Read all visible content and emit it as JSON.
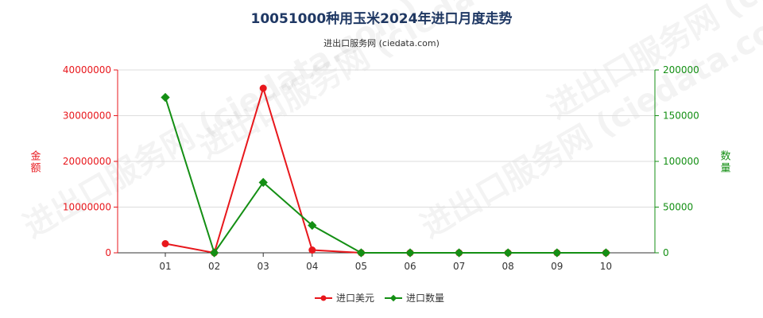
{
  "header": {
    "title": "10051000种用玉米2024年进口月度走势",
    "subtitle": "进出口服务网 (ciedata.com)"
  },
  "watermark": "进出口服务网 (ciedata.com)",
  "colors": {
    "amount": "#e8171c",
    "quantity": "#148f14",
    "title": "#1f3864"
  },
  "chart_data": {
    "type": "line",
    "x": [
      "01",
      "02",
      "03",
      "04",
      "05",
      "06",
      "07",
      "08",
      "09",
      "10"
    ],
    "series": [
      {
        "name": "进口美元",
        "axis": "left",
        "color": "#e8171c",
        "values": [
          2000000,
          0,
          36000000,
          600000,
          0,
          0,
          0,
          0,
          0,
          0
        ]
      },
      {
        "name": "进口数量",
        "axis": "right",
        "color": "#148f14",
        "values": [
          170000,
          0,
          77000,
          30000,
          0,
          0,
          0,
          0,
          0,
          0
        ]
      }
    ],
    "yleft": {
      "label": "金额",
      "ylim": [
        0,
        40000000
      ],
      "ticks": [
        "0",
        "10000000",
        "20000000",
        "30000000",
        "40000000"
      ]
    },
    "yright": {
      "label": "数量",
      "ylim": [
        0,
        200000
      ],
      "ticks": [
        "0",
        "50000",
        "100000",
        "150000",
        "200000"
      ]
    },
    "grid": true,
    "legend": "bottom-center"
  }
}
